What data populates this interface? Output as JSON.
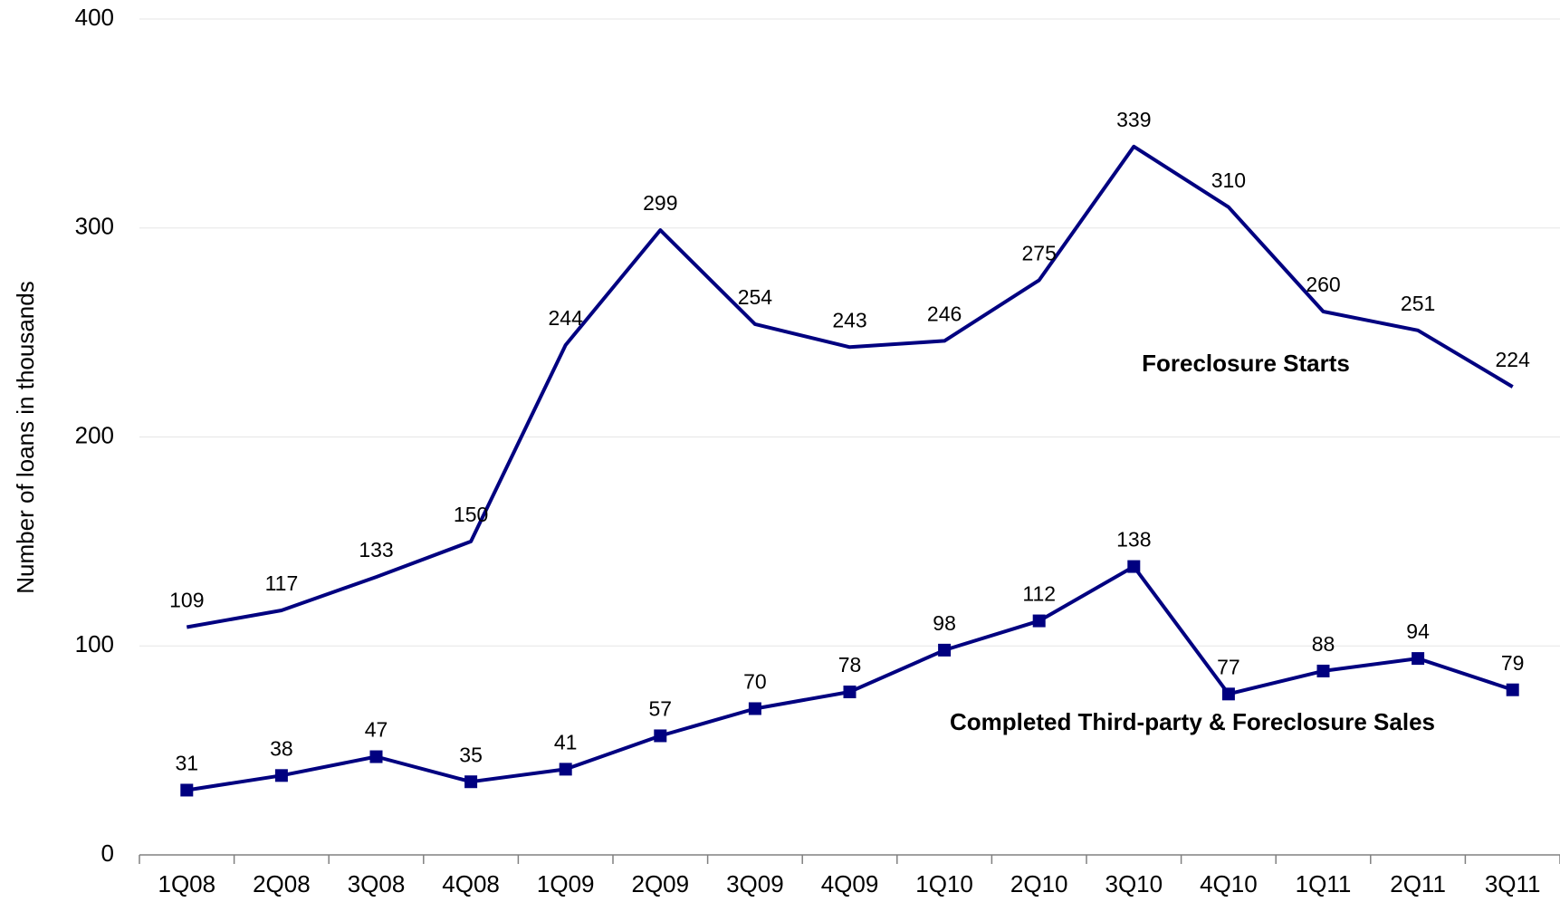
{
  "chart_data": {
    "type": "line",
    "y_label": "Number of loans in thousands",
    "categories": [
      "1Q08",
      "2Q08",
      "3Q08",
      "4Q08",
      "1Q09",
      "2Q09",
      "3Q09",
      "4Q09",
      "1Q10",
      "2Q10",
      "3Q10",
      "4Q10",
      "1Q11",
      "2Q11",
      "3Q11"
    ],
    "series": [
      {
        "name": "Foreclosure Starts",
        "color": "#000080",
        "marker": "none",
        "values": [
          109,
          117,
          133,
          150,
          244,
          299,
          254,
          243,
          246,
          275,
          339,
          310,
          260,
          251,
          224
        ]
      },
      {
        "name": "Completed Third-party & Foreclosure Sales",
        "color": "#000080",
        "marker": "square",
        "values": [
          31,
          38,
          47,
          35,
          41,
          57,
          70,
          78,
          98,
          112,
          138,
          77,
          88,
          94,
          79
        ]
      }
    ],
    "ylim": [
      0,
      400
    ],
    "yticks": [
      0,
      100,
      200,
      300,
      400
    ],
    "grid": true
  }
}
